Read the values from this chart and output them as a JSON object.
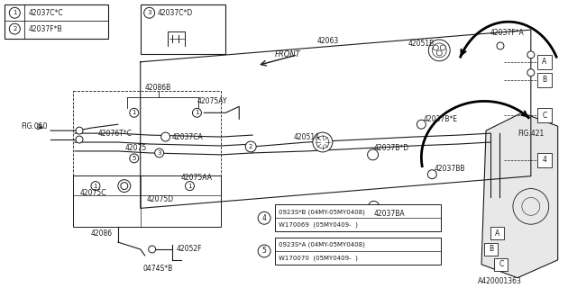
{
  "bg_color": "#ffffff",
  "line_color": "#1a1a1a",
  "legend_items": [
    {
      "num": "1",
      "code": "42037C*C"
    },
    {
      "num": "2",
      "code": "42037F*B"
    }
  ],
  "callout3_code": "42037C*D",
  "ref_code": "A420001363"
}
